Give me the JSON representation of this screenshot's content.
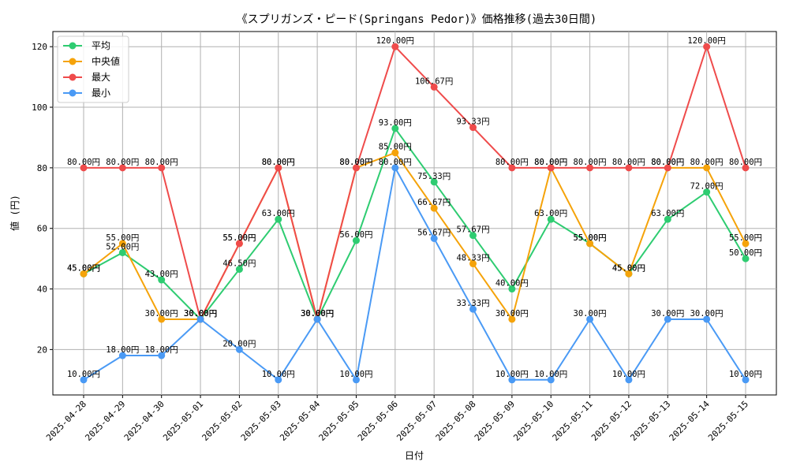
{
  "chart_data": {
    "type": "line",
    "title": "《スプリガンズ・ピード(Springans Pedor)》価格推移(過去30日間)",
    "xlabel": "日付",
    "ylabel": "値 (円)",
    "ylim": [
      5,
      125
    ],
    "yticks": [
      20,
      40,
      60,
      80,
      100,
      120
    ],
    "grid": true,
    "legend_position": "top-left",
    "value_suffix": "円",
    "categories": [
      "2025-04-28",
      "2025-04-29",
      "2025-04-30",
      "2025-05-01",
      "2025-05-02",
      "2025-05-03",
      "2025-05-04",
      "2025-05-05",
      "2025-05-06",
      "2025-05-07",
      "2025-05-08",
      "2025-05-09",
      "2025-05-10",
      "2025-05-11",
      "2025-05-12",
      "2025-05-13",
      "2025-05-14",
      "2025-05-15"
    ],
    "series": [
      {
        "name": "平均",
        "color": "#2ecc71",
        "values": [
          45,
          52,
          43,
          30,
          46.5,
          63,
          30,
          56,
          93,
          75.33,
          57.67,
          40,
          63,
          55,
          45,
          63,
          72,
          50
        ]
      },
      {
        "name": "中央値",
        "color": "#f5a30a",
        "values": [
          45,
          55,
          30,
          30,
          55,
          80,
          30,
          80,
          85,
          66.67,
          48.33,
          30,
          80,
          55,
          45,
          80,
          80,
          55
        ]
      },
      {
        "name": "最大",
        "color": "#ef4b4b",
        "values": [
          80,
          80,
          80,
          30,
          55,
          80,
          30,
          80,
          120,
          106.67,
          93.33,
          80,
          80,
          80,
          80,
          80,
          120,
          80
        ]
      },
      {
        "name": "最小",
        "color": "#4a9af5",
        "values": [
          10,
          18,
          18,
          30,
          20,
          10,
          30,
          10,
          80,
          56.67,
          33.33,
          10,
          10,
          30,
          10,
          30,
          30,
          10
        ]
      }
    ]
  }
}
